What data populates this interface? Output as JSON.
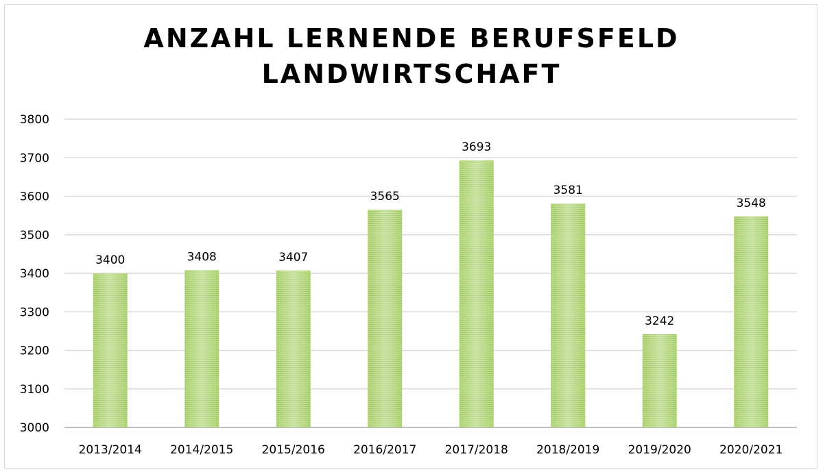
{
  "chart_data": {
    "type": "bar",
    "title_lines": [
      "ANZAHL LERNENDE BERUFSFELD",
      "LANDWIRTSCHAFT"
    ],
    "categories": [
      "2013/2014",
      "2014/2015",
      "2015/2016",
      "2016/2017",
      "2017/2018",
      "2018/2019",
      "2019/2020",
      "2020/2021"
    ],
    "values": [
      3400,
      3408,
      3407,
      3565,
      3693,
      3581,
      3242,
      3548
    ],
    "xlabel": "",
    "ylabel": "",
    "ylim": [
      3000,
      3800
    ],
    "yticks": [
      3000,
      3100,
      3200,
      3300,
      3400,
      3500,
      3600,
      3700,
      3800
    ],
    "grid": true,
    "legend": "none",
    "bar_color": "#a9d06a"
  }
}
